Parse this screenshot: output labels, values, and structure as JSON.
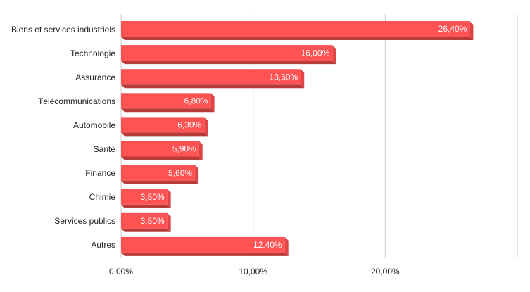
{
  "chart_data": {
    "type": "bar",
    "orientation": "horizontal",
    "categories": [
      "Biens et services industriels",
      "Technologie",
      "Assurance",
      "Télécommunications",
      "Automobile",
      "Santé",
      "Finance",
      "Chimie",
      "Services publics",
      "Autres"
    ],
    "values": [
      26.4,
      16,
      13.6,
      6.8,
      6.3,
      5.9,
      5.6,
      3.5,
      3.5,
      12.4
    ],
    "value_labels": [
      "26,40%",
      "16,00%",
      "13,60%",
      "6,80%",
      "6,30%",
      "5,90%",
      "5,60%",
      "3,50%",
      "3,50%",
      "12,40%"
    ],
    "color": "#ff5252",
    "xlim": [
      0,
      30
    ],
    "xticks": [
      {
        "value": 0,
        "label": "0,00%"
      },
      {
        "value": 10,
        "label": "10,00%"
      },
      {
        "value": 20,
        "label": "20,00%"
      }
    ],
    "grid": true
  }
}
